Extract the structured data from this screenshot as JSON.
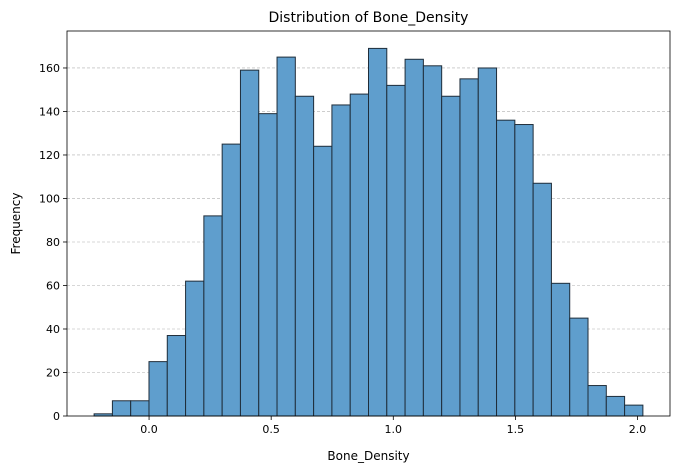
{
  "chart_data": {
    "type": "bar",
    "title": "Distribution of Bone_Density",
    "xlabel": "Bone_Density",
    "ylabel": "Frequency",
    "bin_edges": [
      -0.225,
      -0.1501,
      -0.0752,
      -0.0003,
      0.0746,
      0.1495,
      0.2244,
      0.2993,
      0.3742,
      0.4491,
      0.524,
      0.5989,
      0.6738,
      0.7487,
      0.8236,
      0.8985,
      0.9734,
      1.0483,
      1.1232,
      1.1981,
      1.273,
      1.3479,
      1.4228,
      1.4977,
      1.5726,
      1.6475,
      1.7224,
      1.7973,
      1.8722,
      1.9471,
      2.022
    ],
    "values": [
      1,
      7,
      7,
      25,
      37,
      62,
      92,
      125,
      159,
      139,
      165,
      147,
      124,
      143,
      148,
      169,
      152,
      164,
      161,
      147,
      155,
      160,
      136,
      134,
      107,
      61,
      45,
      14,
      9,
      5
    ],
    "xlim": [
      -0.336,
      2.133
    ],
    "ylim": [
      0,
      177
    ],
    "xticks": [
      0.0,
      0.5,
      1.0,
      1.5,
      2.0
    ],
    "xtick_labels": [
      "0.0",
      "0.5",
      "1.0",
      "1.5",
      "2.0"
    ],
    "yticks": [
      0,
      20,
      40,
      60,
      80,
      100,
      120,
      140,
      160
    ],
    "ytick_labels": [
      "0",
      "20",
      "40",
      "60",
      "80",
      "100",
      "120",
      "140",
      "160"
    ],
    "grid": "y-dashed",
    "bar_color": "#5f9ecd",
    "edge_color": "#1f2d3a"
  }
}
